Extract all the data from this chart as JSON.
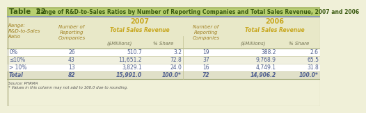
{
  "title_bold": "Table  22",
  "title_rest": " Range of R&D-to-Sales Ratios by Number of Reporting Companies and Total Sales Revenue, 2007 and 2006",
  "rows": [
    [
      "0%",
      "26",
      "510.7",
      "3.2",
      "19",
      "388.2",
      "2.6"
    ],
    [
      "≤10%",
      "43",
      "11,651.2",
      "72.8",
      "37",
      "9,768.9",
      "65.5"
    ],
    [
      "> 10%",
      "13",
      "3,829.1",
      "24.0",
      "16",
      "4,749.1",
      "31.8"
    ],
    [
      "Total",
      "82",
      "15,991.0",
      "100.0*",
      "72",
      "14,906.2",
      "100.0*"
    ]
  ],
  "footnotes": [
    "Source: PHRMA",
    "* Values in this column may not add to 100.0 due to rounding."
  ],
  "title_bg": "#b8d070",
  "title_bold_color": "#3a5a10",
  "title_rest_color": "#3a5a10",
  "header_bg": "#e8e8c8",
  "header_line_color": "#c8b870",
  "year_color": "#c8a820",
  "tsr_color": "#c8a820",
  "sub_hdr_color": "#707050",
  "left_hdr_color": "#a08020",
  "row_bg": [
    "#ffffff",
    "#f0f0e0",
    "#ffffff",
    "#e0e0c8"
  ],
  "data_text_color": "#506090",
  "label_text_color": "#506090",
  "total_text_color": "#506090",
  "footnote_color": "#505050",
  "border_color": "#a0a070",
  "separator_color": "#c0c090",
  "bg_color": "#f0f0d8"
}
